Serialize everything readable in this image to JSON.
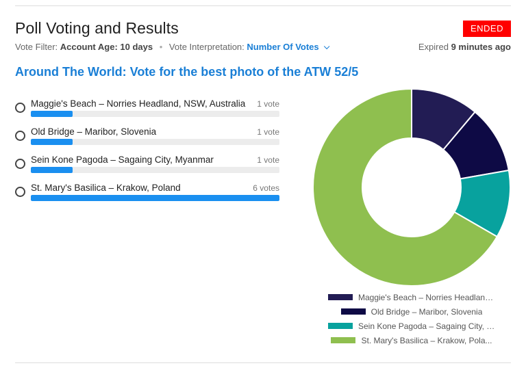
{
  "header": {
    "title": "Poll Voting and Results",
    "status": "ENDED",
    "vote_filter_label": "Vote Filter:",
    "vote_filter_value": "Account Age: 10 days",
    "interpretation_label": "Vote Interpretation:",
    "interpretation_value": "Number Of Votes",
    "expired_label": "Expired",
    "expired_value": "9 minutes ago"
  },
  "poll": {
    "question": "Around The World: Vote for the best photo of the ATW 52/5",
    "options": [
      {
        "label": "Maggie's Beach – Norries Headland, NSW, Australia",
        "count_text": "1 vote",
        "votes": 1
      },
      {
        "label": "Old Bridge – Maribor, Slovenia",
        "count_text": "1 vote",
        "votes": 1
      },
      {
        "label": "Sein Kone Pagoda – Sagaing City, Myanmar",
        "count_text": "1 vote",
        "votes": 1
      },
      {
        "label": "St. Mary's Basilica – Krakow, Poland",
        "count_text": "6 votes",
        "votes": 6
      }
    ]
  },
  "chart_data": {
    "type": "pie",
    "categories": [
      "Maggie's Beach – Norries Headland, NSW, Australia",
      "Old Bridge – Maribor, Slovenia",
      "Sein Kone Pagoda – Sagaing City, Myanmar",
      "St. Mary's Basilica – Krakow, Poland"
    ],
    "values": [
      1,
      1,
      1,
      6
    ],
    "colors": [
      "#221c54",
      "#0e0a45",
      "#08a29e",
      "#8fbf4f"
    ],
    "legend": [
      "Maggie's Beach – Norries Headland,...",
      "Old Bridge – Maribor, Slovenia",
      "Sein Kone Pagoda – Sagaing City, M...",
      "St. Mary's Basilica – Krakow, Pola..."
    ],
    "legend_position": "bottom",
    "donut": true
  },
  "colors": {
    "accent": "#1a7fd6",
    "bar_fill": "#1a8ff0",
    "ended_badge": "#ff0000"
  }
}
